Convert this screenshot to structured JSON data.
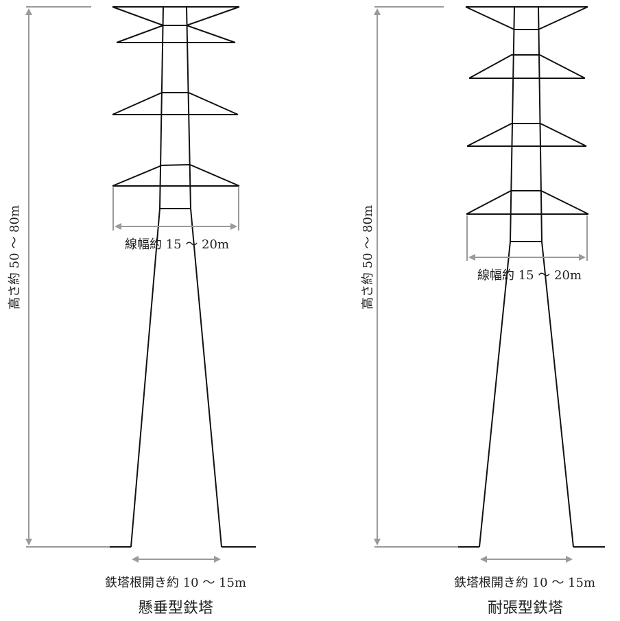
{
  "towers": [
    {
      "id": "suspension",
      "caption": "懸垂型鉄塔",
      "height_label": "高さ約 50 ～ 80m",
      "width_label": "線幅約 15 ～ 20m",
      "base_label": "鉄塔根開き約 10 ～ 15m"
    },
    {
      "id": "tension",
      "caption": "耐張型鉄塔",
      "height_label": "高さ約 50 ～ 80m",
      "width_label": "線幅約 15 ～ 20m",
      "base_label": "鉄塔根開き約 10 ～ 15m"
    }
  ],
  "colors": {
    "structure": "#111111",
    "dimension": "#9a9a9a",
    "text": "#222222"
  }
}
